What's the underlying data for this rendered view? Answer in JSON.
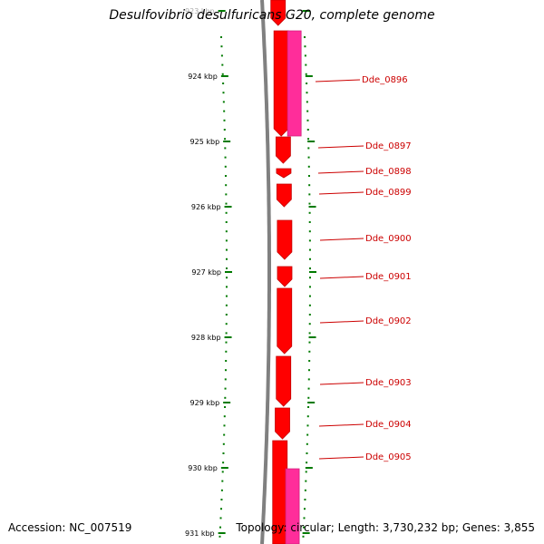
{
  "header": {
    "title": "Desulfovibrio desulfuricans G20, complete genome"
  },
  "footer": {
    "accession": "Accession: NC_007519",
    "topology": "Topology: circular; Length: 3,730,232 bp; Genes: 3,855"
  },
  "scale": {
    "labels": [
      "923 kbp",
      "924 kbp",
      "925 kbp",
      "926 kbp",
      "927 kbp",
      "928 kbp",
      "929 kbp",
      "930 kbp",
      "931 kbp"
    ]
  },
  "genes": [
    {
      "label": "Dde_0896"
    },
    {
      "label": "Dde_0897"
    },
    {
      "label": "Dde_0898"
    },
    {
      "label": "Dde_0899"
    },
    {
      "label": "Dde_0900"
    },
    {
      "label": "Dde_0901"
    },
    {
      "label": "Dde_0902"
    },
    {
      "label": "Dde_0903"
    },
    {
      "label": "Dde_0904"
    },
    {
      "label": "Dde_0905"
    }
  ],
  "colors": {
    "forward_gene": "#ff0000",
    "forward_gene_edge": "#c40000",
    "reverse_gene": "#ff2d9a",
    "backbone": "#808080",
    "tick": "#007a00",
    "label": "#cc0000"
  }
}
